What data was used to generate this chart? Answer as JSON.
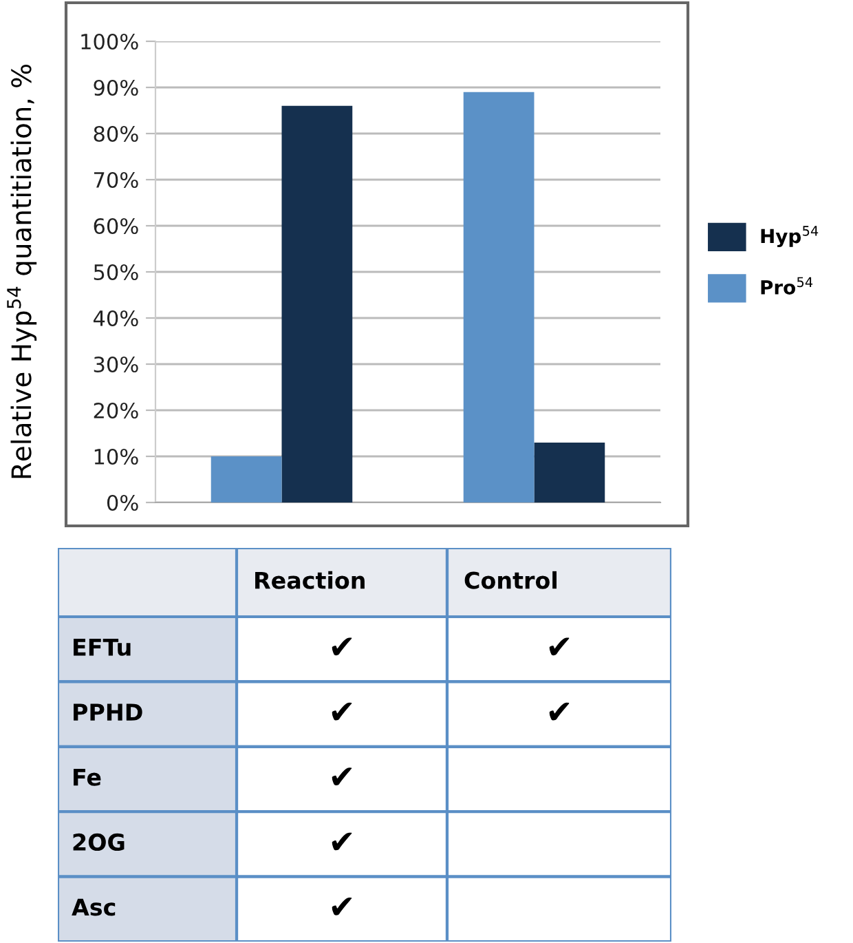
{
  "chart_data": [
    {
      "type": "bar",
      "ylabel": "Relative Hyp$^{54}$ quantitiation, %",
      "categories": [
        null,
        null
      ],
      "series": [
        {
          "name": "Hyp$^{54}$",
          "color": "#15304f",
          "values": [
            86,
            13
          ]
        },
        {
          "name": "Pro$^{54}$",
          "color": "#5b91c7",
          "values": [
            10,
            89
          ]
        }
      ],
      "ylim": [
        0,
        100
      ],
      "yticks": [
        {
          "value": 0,
          "label": "0%"
        },
        {
          "value": 10,
          "label": "10%"
        },
        {
          "value": 20,
          "label": "20%"
        },
        {
          "value": 30,
          "label": "30%"
        },
        {
          "value": 40,
          "label": "40%"
        },
        {
          "value": 50,
          "label": "50%"
        },
        {
          "value": 60,
          "label": "60%"
        },
        {
          "value": 70,
          "label": "70%"
        },
        {
          "value": 80,
          "label": "80%"
        },
        {
          "value": 90,
          "label": "90%"
        },
        {
          "value": 100,
          "label": "100%"
        }
      ],
      "grid": "y",
      "legend": "right"
    },
    {
      "type": "other",
      "categories": [
        "Reaction",
        "Control"
      ],
      "y_categories": [
        "EFTu",
        "PPHD",
        "Fe",
        "2OG",
        "Asc"
      ],
      "cell_labels": [
        [
          "✔",
          "✔"
        ],
        [
          "✔",
          "✔"
        ],
        [
          "✔",
          null
        ],
        [
          "✔",
          null
        ],
        [
          "✔",
          null
        ]
      ]
    }
  ]
}
